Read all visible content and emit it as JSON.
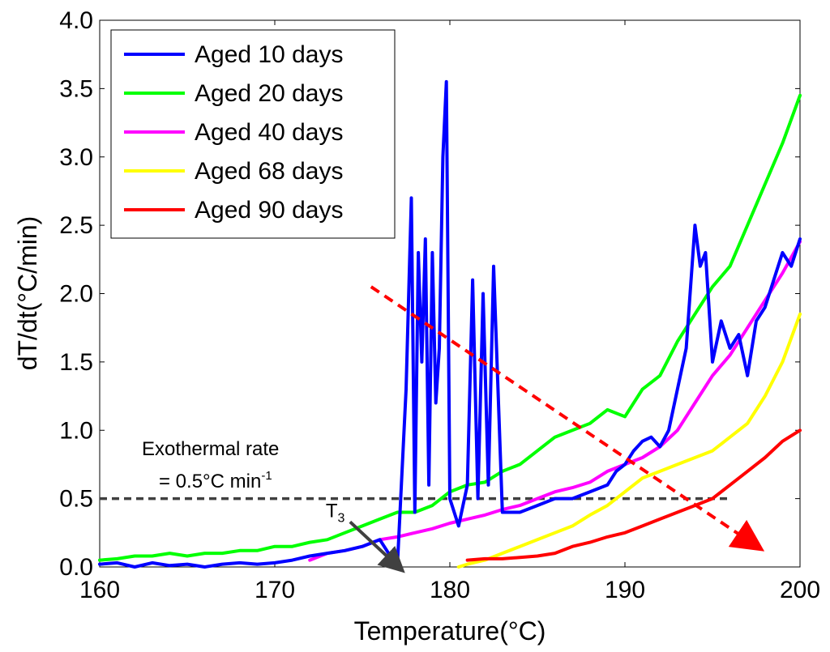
{
  "chart_data": {
    "type": "line",
    "title": "",
    "xlabel": "Temperature(°C)",
    "ylabel": "dT/dt(°C/min)",
    "xlim": [
      160,
      200
    ],
    "ylim": [
      0,
      4.0
    ],
    "xticks": [
      160,
      170,
      180,
      190,
      200
    ],
    "yticks": [
      "0.0",
      "0.5",
      "1.0",
      "1.5",
      "2.0",
      "2.5",
      "3.0",
      "3.5",
      "4.0"
    ],
    "grid": false,
    "legend_position": "top-left",
    "series": [
      {
        "name": "Aged 10 days",
        "color": "#0000ff",
        "x": [
          160,
          161,
          162,
          163,
          164,
          165,
          166,
          167,
          168,
          169,
          170,
          171,
          172,
          173,
          174,
          175,
          176,
          177,
          177.5,
          177.8,
          178.0,
          178.2,
          178.4,
          178.6,
          178.8,
          179.0,
          179.2,
          179.4,
          179.6,
          179.8,
          180,
          180.5,
          181,
          181.3,
          181.6,
          181.9,
          182.2,
          182.5,
          183,
          184,
          185,
          186,
          187,
          188,
          189,
          189.5,
          190,
          190.5,
          191,
          191.5,
          192,
          192.5,
          193,
          193.5,
          194,
          194.3,
          194.6,
          195,
          195.5,
          196,
          196.5,
          197,
          197.5,
          198,
          198.5,
          199,
          199.5,
          200
        ],
        "y": [
          0.02,
          0.03,
          0.0,
          0.03,
          0.01,
          0.02,
          0.0,
          0.02,
          0.03,
          0.02,
          0.03,
          0.05,
          0.08,
          0.1,
          0.12,
          0.15,
          0.2,
          0.0,
          1.3,
          2.7,
          0.4,
          2.3,
          1.5,
          2.4,
          0.6,
          2.3,
          1.2,
          1.6,
          3.0,
          3.55,
          0.5,
          0.3,
          0.6,
          2.1,
          0.5,
          2.0,
          0.6,
          2.2,
          0.4,
          0.4,
          0.45,
          0.5,
          0.5,
          0.55,
          0.6,
          0.7,
          0.75,
          0.85,
          0.92,
          0.95,
          0.88,
          1.0,
          1.3,
          1.6,
          2.5,
          2.2,
          2.3,
          1.5,
          1.8,
          1.6,
          1.7,
          1.4,
          1.8,
          1.9,
          2.1,
          2.3,
          2.2,
          2.4
        ]
      },
      {
        "name": "Aged 20 days",
        "color": "#00ff00",
        "x": [
          160,
          161,
          162,
          163,
          164,
          165,
          166,
          167,
          168,
          169,
          170,
          171,
          172,
          173,
          174,
          175,
          176,
          177,
          178,
          179,
          180,
          181,
          182,
          183,
          184,
          185,
          186,
          187,
          188,
          189,
          190,
          191,
          192,
          193,
          194,
          195,
          196,
          197,
          198,
          199,
          200
        ],
        "y": [
          0.05,
          0.06,
          0.08,
          0.08,
          0.1,
          0.08,
          0.1,
          0.1,
          0.12,
          0.12,
          0.15,
          0.15,
          0.18,
          0.2,
          0.25,
          0.3,
          0.35,
          0.4,
          0.4,
          0.45,
          0.55,
          0.6,
          0.62,
          0.7,
          0.75,
          0.85,
          0.95,
          1.0,
          1.05,
          1.15,
          1.1,
          1.3,
          1.4,
          1.65,
          1.85,
          2.05,
          2.2,
          2.5,
          2.8,
          3.1,
          3.45
        ]
      },
      {
        "name": "Aged 40 days",
        "color": "#ff00ff",
        "x": [
          172,
          173,
          174,
          175,
          176,
          177,
          178,
          179,
          180,
          181,
          182,
          183,
          184,
          185,
          186,
          187,
          188,
          189,
          190,
          191,
          192,
          193,
          194,
          195,
          196,
          197,
          198,
          199,
          200
        ],
        "y": [
          0.05,
          0.1,
          0.12,
          0.15,
          0.2,
          0.22,
          0.25,
          0.28,
          0.32,
          0.35,
          0.38,
          0.42,
          0.45,
          0.5,
          0.55,
          0.58,
          0.62,
          0.7,
          0.75,
          0.8,
          0.88,
          1.0,
          1.2,
          1.4,
          1.55,
          1.75,
          1.95,
          2.15,
          2.38
        ]
      },
      {
        "name": "Aged 68 days",
        "color": "#ffff00",
        "x": [
          180.5,
          181,
          182,
          183,
          184,
          185,
          186,
          187,
          188,
          189,
          190,
          191,
          192,
          193,
          194,
          195,
          196,
          197,
          198,
          199,
          200
        ],
        "y": [
          0.0,
          0.02,
          0.05,
          0.1,
          0.15,
          0.2,
          0.25,
          0.3,
          0.38,
          0.45,
          0.55,
          0.65,
          0.7,
          0.75,
          0.8,
          0.85,
          0.95,
          1.05,
          1.25,
          1.5,
          1.85
        ]
      },
      {
        "name": "Aged 90 days",
        "color": "#ff0000",
        "x": [
          181,
          182,
          183,
          184,
          185,
          186,
          187,
          188,
          189,
          190,
          191,
          192,
          193,
          194,
          195,
          196,
          197,
          198,
          199,
          200
        ],
        "y": [
          0.05,
          0.06,
          0.06,
          0.07,
          0.08,
          0.1,
          0.15,
          0.18,
          0.22,
          0.25,
          0.3,
          0.35,
          0.4,
          0.45,
          0.5,
          0.6,
          0.7,
          0.8,
          0.92,
          1.0
        ]
      }
    ],
    "reference_line": {
      "y": 0.5,
      "x_start": 160,
      "x_end": 196,
      "color": "#404040"
    },
    "trend_arrow": {
      "from": [
        175.5,
        2.05
      ],
      "to": [
        197.2,
        0.18
      ],
      "color": "#ff0000"
    },
    "annotation_rate": {
      "line1": "Exothermal rate",
      "line2": "= 0.5°C min",
      "sup": "-1"
    },
    "annotation_t3": {
      "main": "T",
      "sub": "3",
      "arrow_from": [
        174.3,
        0.33
      ],
      "arrow_to": [
        176.9,
        0.02
      ]
    }
  }
}
